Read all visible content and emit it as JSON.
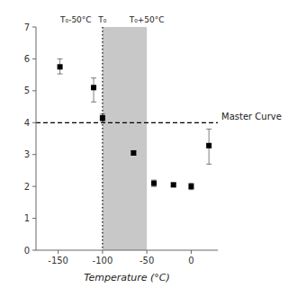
{
  "chart_data": {
    "type": "scatter",
    "xlabel": "Temperature (°C)",
    "xlim": [
      -175,
      30
    ],
    "ylim": [
      0,
      7
    ],
    "xticks": [
      -150,
      -100,
      -50,
      0
    ],
    "yticks": [
      0,
      1,
      2,
      3,
      4,
      5,
      6,
      7
    ],
    "grid": false,
    "x": [
      -148,
      -110,
      -100,
      -65,
      -42,
      -20,
      0,
      20
    ],
    "series": [
      {
        "values": [
          5.75,
          5.1,
          4.15,
          3.05,
          2.1,
          2.05,
          2.0,
          3.28
        ],
        "error_low": [
          0.22,
          0.45,
          0.1,
          0.06,
          0.1,
          0.05,
          0.1,
          0.58
        ],
        "error_high": [
          0.25,
          0.3,
          0.12,
          0.06,
          0.1,
          0.05,
          0.1,
          0.52
        ],
        "color": "black",
        "marker": "square"
      }
    ],
    "span": {
      "x0": -100,
      "x1": -50,
      "color": "#c8c8c8"
    },
    "vline": {
      "x": -100,
      "color": "black",
      "line_style": "dotted"
    },
    "hline": {
      "y": 4.0,
      "color": "black",
      "line_style": "dashed",
      "label": "Master Curve"
    },
    "annotations": [
      {
        "text": "T₀-50°C",
        "x": -130,
        "y": 7.0
      },
      {
        "text": "T₀",
        "x": -100,
        "y": 7.0
      },
      {
        "text": "T₀+50°C",
        "x": -50,
        "y": 7.0
      }
    ]
  }
}
